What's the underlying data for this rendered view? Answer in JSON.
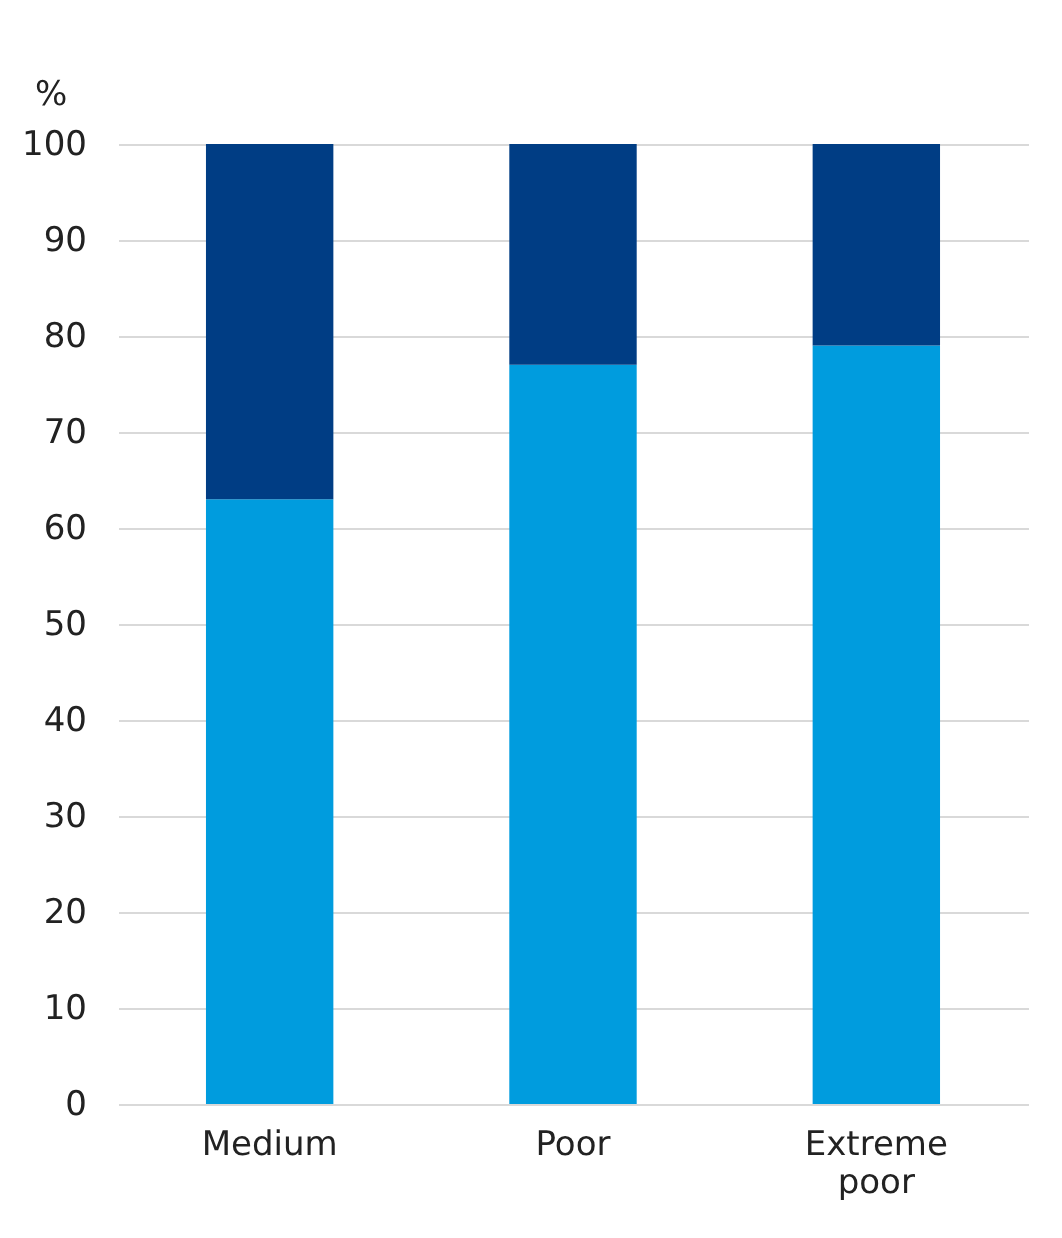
{
  "chart_data": {
    "type": "bar",
    "ylabel": "%",
    "categories": [
      "Medium",
      "Poor",
      "Extreme poor"
    ],
    "stacked": true,
    "series": [
      {
        "color": "#009cde",
        "values": [
          63,
          77,
          79
        ]
      },
      {
        "color": "#003d84",
        "values": [
          37,
          23,
          21
        ]
      }
    ],
    "ylim": [
      0,
      100
    ],
    "yticks": [
      0,
      10,
      20,
      30,
      40,
      50,
      60,
      70,
      80,
      90,
      100
    ],
    "grid": "y",
    "legend": false
  }
}
